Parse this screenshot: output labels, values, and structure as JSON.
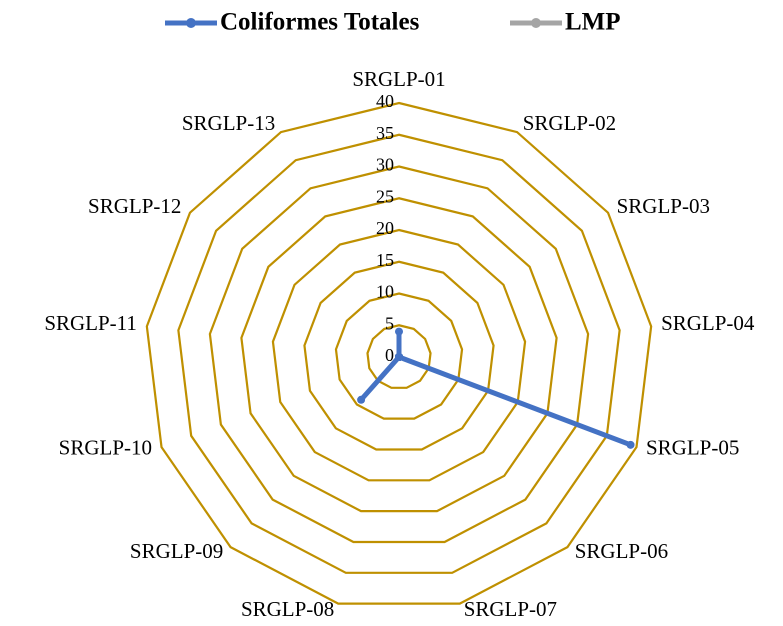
{
  "chart_data": {
    "type": "radar",
    "categories": [
      "SRGLP-01",
      "SRGLP-02",
      "SRGLP-03",
      "SRGLP-04",
      "SRGLP-05",
      "SRGLP-06",
      "SRGLP-07",
      "SRGLP-08",
      "SRGLP-09",
      "SRGLP-10",
      "SRGLP-11",
      "SRGLP-12",
      "SRGLP-13"
    ],
    "series": [
      {
        "name": "Coliformes Totales",
        "color": "#4472c4",
        "values": [
          4,
          0,
          0,
          0,
          39,
          0,
          0,
          0,
          9,
          0,
          0,
          0,
          0
        ]
      },
      {
        "name": "LMP",
        "color": "#a5a5a5",
        "values": [
          0,
          0,
          0,
          0,
          0,
          0,
          0,
          0,
          0,
          0,
          0,
          0,
          0
        ]
      }
    ],
    "ylim": [
      0,
      40
    ],
    "yticks": [
      0,
      5,
      10,
      15,
      20,
      25,
      30,
      35,
      40
    ],
    "grid": true,
    "grid_color": "#bf9000",
    "legend": "top"
  }
}
